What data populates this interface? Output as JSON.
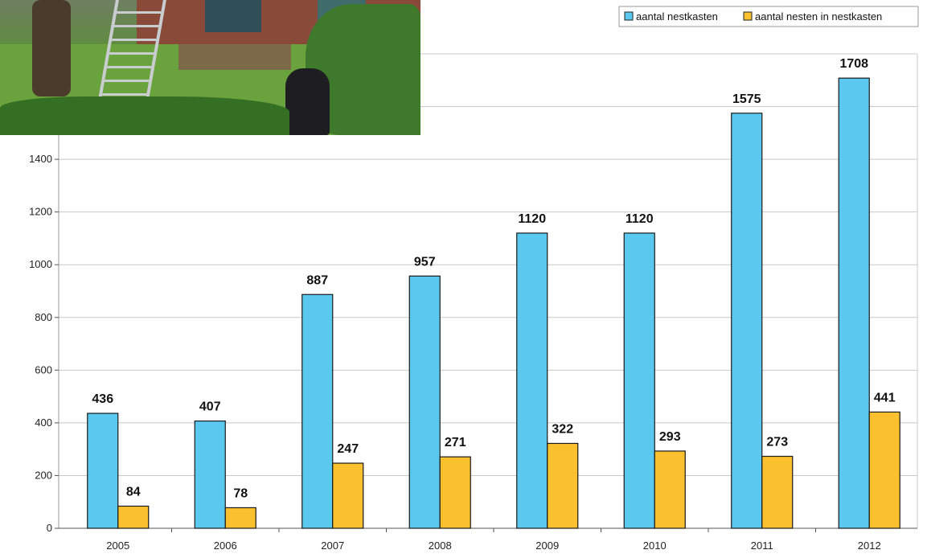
{
  "chart_data": {
    "type": "bar",
    "title": "",
    "xlabel": "",
    "ylabel": "",
    "categories": [
      "2005",
      "2006",
      "2007",
      "2008",
      "2009",
      "2010",
      "2011",
      "2012"
    ],
    "series": [
      {
        "name": "aantal nestkasten",
        "color": "#5bc8ef",
        "values": [
          436,
          407,
          887,
          957,
          1120,
          1120,
          1575,
          1708
        ]
      },
      {
        "name": "aantal nesten in nestkasten",
        "color": "#fbc02d",
        "values": [
          84,
          78,
          247,
          271,
          322,
          293,
          273,
          441
        ]
      }
    ],
    "ylim": [
      0,
      1800
    ],
    "yticks": [
      0,
      200,
      400,
      600,
      800,
      1000,
      1200,
      1400
    ],
    "grid": true,
    "legend_position": "top-right",
    "data_labels": true
  },
  "photo": {
    "description_icon": "garden-photo"
  }
}
